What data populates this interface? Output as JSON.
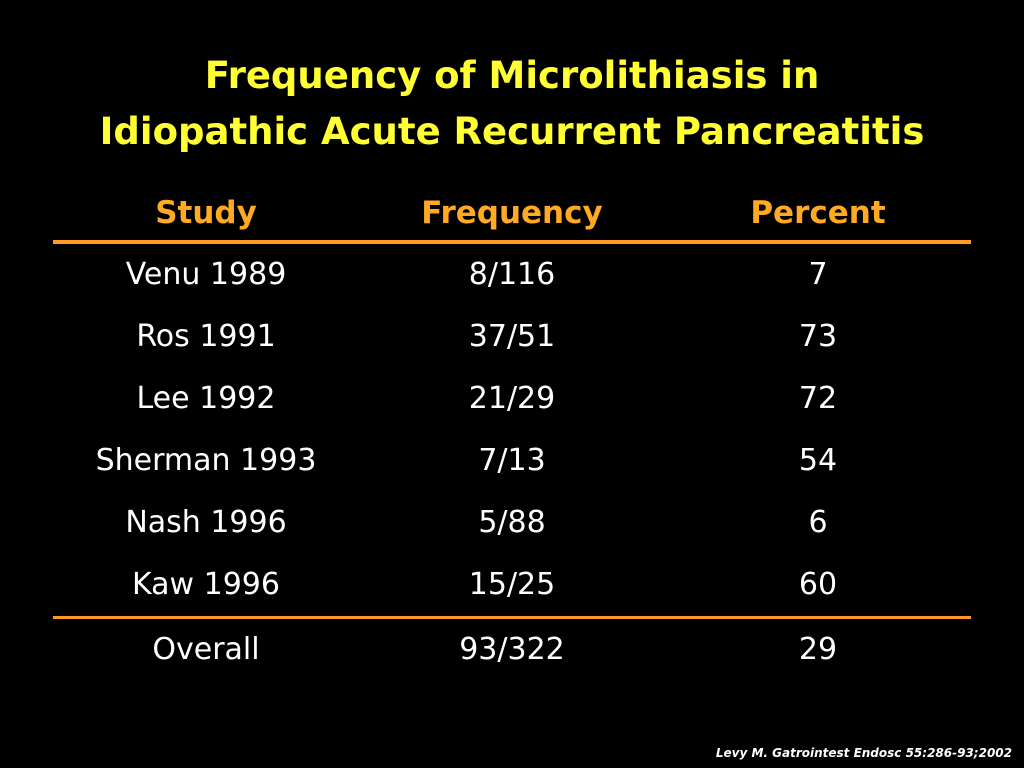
{
  "slide": {
    "title_line1": "Frequency of Microlithiasis in",
    "title_line2": "Idiopathic Acute Recurrent Pancreatitis",
    "citation": "Levy M. Gatrointest Endosc 55:286-93;2002"
  },
  "colors": {
    "background": "#000000",
    "title": "#ffff33",
    "header": "#ffaa22",
    "rule": "#ff9922",
    "text": "#ffffff"
  },
  "table": {
    "headers": [
      "Study",
      "Frequency",
      "Percent"
    ],
    "rows": [
      [
        "Venu 1989",
        "8/116",
        "7"
      ],
      [
        "Ros 1991",
        "37/51",
        "73"
      ],
      [
        "Lee 1992",
        "21/29",
        "72"
      ],
      [
        "Sherman 1993",
        "7/13",
        "54"
      ],
      [
        "Nash 1996",
        "5/88",
        "6"
      ],
      [
        "Kaw 1996",
        "15/25",
        "60"
      ]
    ],
    "overall": [
      "Overall",
      "93/322",
      "29"
    ]
  }
}
